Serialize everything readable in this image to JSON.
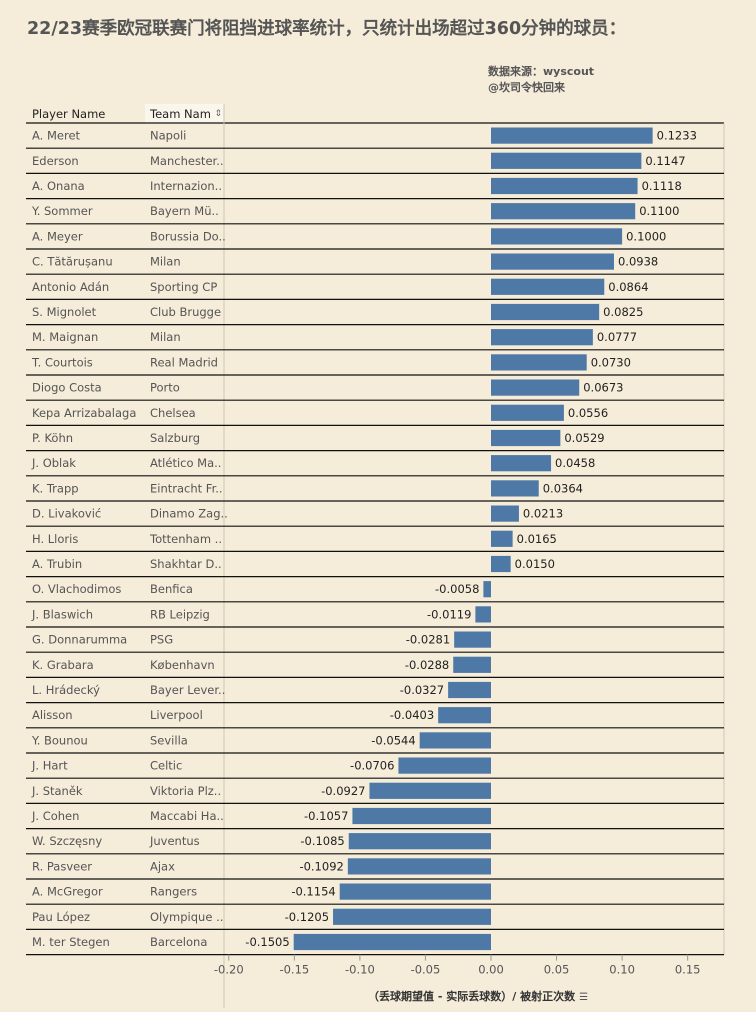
{
  "title": "22/23赛季欧冠联赛门将阻挡进球率统计，只统计出场超过360分钟的球员：",
  "source_line1": "数据来源：wyscout",
  "source_line2": "@坎司令快回来",
  "headers": {
    "player": "Player Name",
    "team": "Team Nam"
  },
  "sort_icon": "sort-icon",
  "chart_data": {
    "type": "bar",
    "orientation": "horizontal",
    "xlabel": "（丢球期望值 - 实际丢球数）/ 被射正次数",
    "xlim": [
      -0.22,
      0.18
    ],
    "xticks": [
      -0.2,
      -0.15,
      -0.1,
      -0.05,
      0.0,
      0.05,
      0.1,
      0.15
    ],
    "xtick_labels": [
      "-0.20",
      "-0.15",
      "-0.10",
      "-0.05",
      "0.00",
      "0.05",
      "0.10",
      "0.15"
    ],
    "bar_color": "#4e79a7",
    "rows": [
      {
        "player": "A. Meret",
        "team": "Napoli",
        "value": 0.1233,
        "label": "0.1233"
      },
      {
        "player": "Ederson",
        "team": "Manchester..",
        "value": 0.1147,
        "label": "0.1147"
      },
      {
        "player": "A. Onana",
        "team": "Internazion..",
        "value": 0.1118,
        "label": "0.1118"
      },
      {
        "player": "Y. Sommer",
        "team": "Bayern Mü..",
        "value": 0.11,
        "label": "0.1100"
      },
      {
        "player": "A. Meyer",
        "team": "Borussia Do..",
        "value": 0.1,
        "label": "0.1000"
      },
      {
        "player": "C. Tătărușanu",
        "team": "Milan",
        "value": 0.0938,
        "label": "0.0938"
      },
      {
        "player": "Antonio Adán",
        "team": "Sporting CP",
        "value": 0.0864,
        "label": "0.0864"
      },
      {
        "player": "S. Mignolet",
        "team": "Club Brugge",
        "value": 0.0825,
        "label": "0.0825"
      },
      {
        "player": "M. Maignan",
        "team": "Milan",
        "value": 0.0777,
        "label": "0.0777"
      },
      {
        "player": "T. Courtois",
        "team": "Real Madrid",
        "value": 0.073,
        "label": "0.0730"
      },
      {
        "player": "Diogo Costa",
        "team": "Porto",
        "value": 0.0673,
        "label": "0.0673"
      },
      {
        "player": "Kepa Arrizabalaga",
        "team": "Chelsea",
        "value": 0.0556,
        "label": "0.0556"
      },
      {
        "player": "P. Köhn",
        "team": "Salzburg",
        "value": 0.0529,
        "label": "0.0529"
      },
      {
        "player": "J. Oblak",
        "team": "Atlético Ma..",
        "value": 0.0458,
        "label": "0.0458"
      },
      {
        "player": "K. Trapp",
        "team": "Eintracht Fr..",
        "value": 0.0364,
        "label": "0.0364"
      },
      {
        "player": "D. Livaković",
        "team": "Dinamo Zag..",
        "value": 0.0213,
        "label": "0.0213"
      },
      {
        "player": "H. Lloris",
        "team": "Tottenham ..",
        "value": 0.0165,
        "label": "0.0165"
      },
      {
        "player": "A. Trubin",
        "team": "Shakhtar D..",
        "value": 0.015,
        "label": "0.0150"
      },
      {
        "player": "O. Vlachodimos",
        "team": "Benfica",
        "value": -0.0058,
        "label": "-0.0058"
      },
      {
        "player": "J. Blaswich",
        "team": "RB Leipzig",
        "value": -0.0119,
        "label": "-0.0119"
      },
      {
        "player": "G. Donnarumma",
        "team": "PSG",
        "value": -0.0281,
        "label": "-0.0281"
      },
      {
        "player": "K. Grabara",
        "team": "København",
        "value": -0.0288,
        "label": "-0.0288"
      },
      {
        "player": "L. Hrádecký",
        "team": "Bayer Lever..",
        "value": -0.0327,
        "label": "-0.0327"
      },
      {
        "player": "Alisson",
        "team": "Liverpool",
        "value": -0.0403,
        "label": "-0.0403"
      },
      {
        "player": "Y. Bounou",
        "team": "Sevilla",
        "value": -0.0544,
        "label": "-0.0544"
      },
      {
        "player": "J. Hart",
        "team": "Celtic",
        "value": -0.0706,
        "label": "-0.0706"
      },
      {
        "player": "J. Staněk",
        "team": "Viktoria Plz..",
        "value": -0.0927,
        "label": "-0.0927"
      },
      {
        "player": "J. Cohen",
        "team": "Maccabi Ha..",
        "value": -0.1057,
        "label": "-0.1057"
      },
      {
        "player": "W. Szczęsny",
        "team": "Juventus",
        "value": -0.1085,
        "label": "-0.1085"
      },
      {
        "player": "R. Pasveer",
        "team": "Ajax",
        "value": -0.1092,
        "label": "-0.1092"
      },
      {
        "player": "A. McGregor",
        "team": "Rangers",
        "value": -0.1154,
        "label": "-0.1154"
      },
      {
        "player": "Pau López",
        "team": "Olympique ..",
        "value": -0.1205,
        "label": "-0.1205"
      },
      {
        "player": "M. ter Stegen",
        "team": "Barcelona",
        "value": -0.1505,
        "label": "-0.1505"
      }
    ]
  }
}
